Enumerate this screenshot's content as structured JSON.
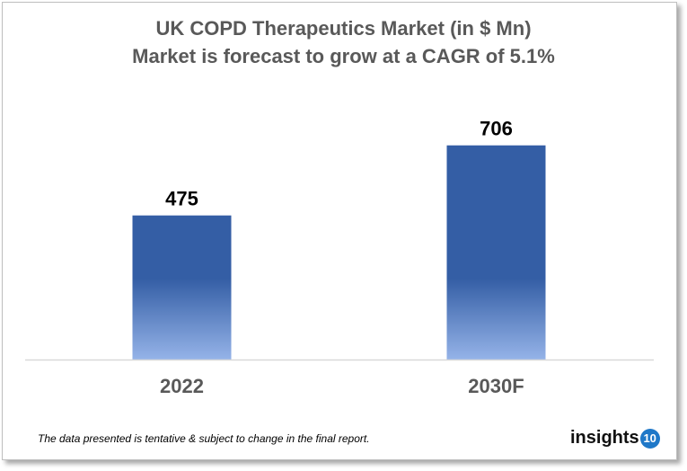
{
  "chart_data": {
    "type": "bar",
    "title": "UK COPD Therapeutics Market (in $ Mn)",
    "subtitle": "Market is forecast to grow at a CAGR of 5.1%",
    "categories": [
      "2022",
      "2030F"
    ],
    "values": [
      475,
      706
    ],
    "data_labels": [
      "475",
      "706"
    ],
    "xlabel": "",
    "ylabel": "",
    "ylim": [
      0,
      800
    ],
    "grid": false,
    "legend": "none",
    "colors": {
      "bar_top": "#345ea5",
      "bar_bottom": "#95b3e8"
    }
  },
  "footer": {
    "note": "The data presented is tentative & subject to change in the final report."
  },
  "logo": {
    "text": "insights",
    "badge": "10"
  }
}
